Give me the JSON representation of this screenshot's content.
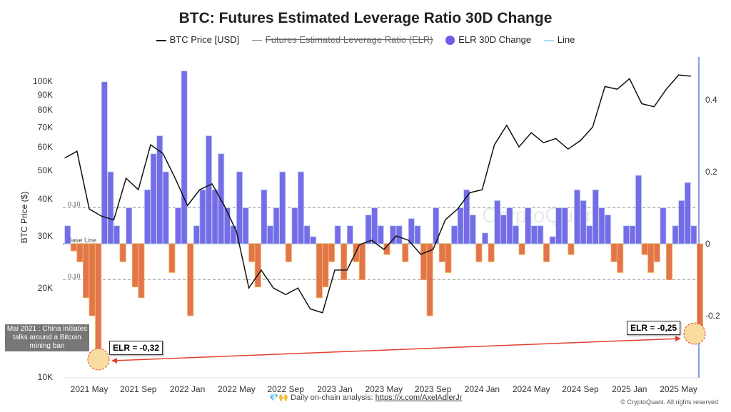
{
  "chart_data": {
    "type": "bar+line",
    "title": "BTC: Futures Estimated Leverage Ratio 30D Change",
    "legend": [
      {
        "name": "BTC Price [USD]",
        "color": "#111111"
      },
      {
        "name": "Futures Estimated Leverage Ratio (ELR)",
        "color": "#888888",
        "hidden": true
      },
      {
        "name": "ELR 30D Change",
        "color": "#6b5be6"
      },
      {
        "name": "Line",
        "color": "#a8d8ef"
      }
    ],
    "legend_position": "top",
    "ylabel_left": "BTC Price ($)",
    "yscale_left": "log",
    "ylim_left": [
      10000,
      130000
    ],
    "yticks_left": [
      "10K",
      "20K",
      "30K",
      "40K",
      "50K",
      "60K",
      "70K",
      "80K",
      "90K",
      "100K"
    ],
    "ylim_right": [
      -0.35,
      0.5
    ],
    "yticks_right": [
      "0.4",
      "0.2",
      "0",
      "-0.2"
    ],
    "xticks": [
      "2021 May",
      "2021 Sep",
      "2022 Jan",
      "2022 May",
      "2022 Sep",
      "2023 Jan",
      "2023 May",
      "2023 Sep",
      "2024 Jan",
      "2024 May",
      "2024 Sep",
      "2025 Jan",
      "2025 May"
    ],
    "reference_lines": [
      {
        "label": "0.10",
        "value": 0.1
      },
      {
        "label": "Base Line",
        "value": 0
      },
      {
        "label": "0.10",
        "value": -0.1
      }
    ],
    "btc_price": [
      [
        "2021-03",
        55000
      ],
      [
        "2021-04",
        58000
      ],
      [
        "2021-05",
        37000
      ],
      [
        "2021-06",
        35000
      ],
      [
        "2021-07",
        34000
      ],
      [
        "2021-08",
        47000
      ],
      [
        "2021-09",
        43000
      ],
      [
        "2021-10",
        61000
      ],
      [
        "2021-11",
        57000
      ],
      [
        "2021-12",
        47000
      ],
      [
        "2022-01",
        38000
      ],
      [
        "2022-02",
        43000
      ],
      [
        "2022-03",
        45000
      ],
      [
        "2022-04",
        38000
      ],
      [
        "2022-05",
        31000
      ],
      [
        "2022-06",
        20000
      ],
      [
        "2022-07",
        23000
      ],
      [
        "2022-08",
        20000
      ],
      [
        "2022-09",
        19000
      ],
      [
        "2022-10",
        20000
      ],
      [
        "2022-11",
        17000
      ],
      [
        "2022-12",
        16500
      ],
      [
        "2023-01",
        23000
      ],
      [
        "2023-02",
        23000
      ],
      [
        "2023-03",
        28000
      ],
      [
        "2023-04",
        29000
      ],
      [
        "2023-05",
        27000
      ],
      [
        "2023-06",
        30000
      ],
      [
        "2023-07",
        29000
      ],
      [
        "2023-08",
        26000
      ],
      [
        "2023-09",
        27000
      ],
      [
        "2023-10",
        34000
      ],
      [
        "2023-11",
        37000
      ],
      [
        "2023-12",
        42000
      ],
      [
        "2024-01",
        43000
      ],
      [
        "2024-02",
        61000
      ],
      [
        "2024-03",
        71000
      ],
      [
        "2024-04",
        60000
      ],
      [
        "2024-05",
        67000
      ],
      [
        "2024-06",
        62000
      ],
      [
        "2024-07",
        64000
      ],
      [
        "2024-08",
        59000
      ],
      [
        "2024-09",
        63000
      ],
      [
        "2024-10",
        70000
      ],
      [
        "2024-11",
        96000
      ],
      [
        "2024-12",
        94000
      ],
      [
        "2025-01",
        102000
      ],
      [
        "2025-02",
        84000
      ],
      [
        "2025-03",
        82000
      ],
      [
        "2025-04",
        94000
      ],
      [
        "2025-05",
        105000
      ],
      [
        "2025-06",
        104000
      ]
    ],
    "elr_30d_change": [
      0.05,
      -0.02,
      -0.05,
      -0.15,
      -0.2,
      -0.32,
      0.45,
      0.2,
      0.05,
      -0.05,
      0.1,
      -0.12,
      -0.15,
      0.15,
      0.25,
      0.3,
      0.2,
      -0.08,
      0.1,
      0.48,
      -0.2,
      0.05,
      0.15,
      0.3,
      0.15,
      0.25,
      0.1,
      0.05,
      0.2,
      0.1,
      -0.05,
      -0.12,
      0.15,
      0.05,
      0.1,
      0.2,
      -0.05,
      0.1,
      0.2,
      0.05,
      0.02,
      -0.15,
      -0.12,
      -0.05,
      0.05,
      -0.1,
      0.05,
      -0.05,
      -0.1,
      0.08,
      0.1,
      0.05,
      -0.03,
      0.05,
      0.05,
      -0.05,
      0.07,
      0.05,
      -0.1,
      -0.2,
      0.1,
      -0.05,
      -0.08,
      0.05,
      0.1,
      0.15,
      0.08,
      -0.05,
      0.03,
      -0.05,
      0.12,
      0.08,
      0.1,
      0.05,
      -0.03,
      0.1,
      0.05,
      0.05,
      -0.05,
      0.02,
      0.1,
      0.1,
      -0.03,
      0.15,
      0.12,
      0.05,
      0.15,
      0.1,
      0.08,
      -0.05,
      -0.08,
      0.05,
      0.05,
      0.19,
      -0.03,
      -0.08,
      -0.05,
      0.1,
      -0.1,
      0.05,
      0.12,
      0.17,
      0.05,
      -0.25
    ]
  },
  "annotations": {
    "note": "Mai 2021 : China initiates talks around a Bitcoin mining ban",
    "elr_2021": "ELR = -0,32",
    "elr_2025": "ELR = -0,25"
  },
  "watermark": "CryptoQuant",
  "footer": {
    "icons": "💎🙌",
    "text": "Daily on-chain analysis: ",
    "link": "https://x.com/AxelAdlerJr",
    "copyright": "© CryptoQuant. All rights reserved"
  }
}
